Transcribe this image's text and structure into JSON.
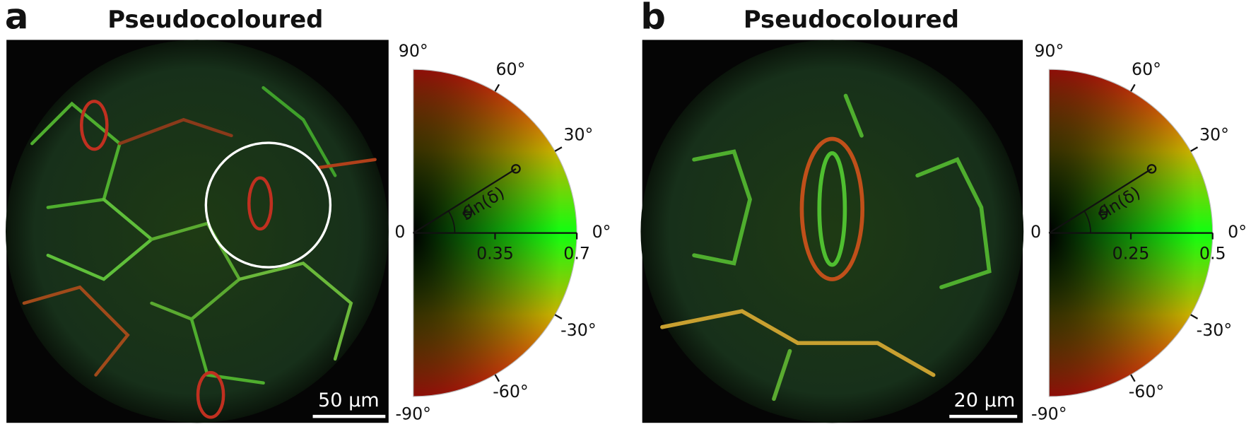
{
  "panels": [
    {
      "label": "a",
      "title": "Pseudocoloured",
      "scale_bar": "50 µm",
      "wheel": {
        "angle_labels": [
          "90°",
          "60°",
          "30°",
          "0°",
          "-30°",
          "-60°",
          "-90°"
        ],
        "origin_label": "0",
        "radial_ticks": [
          "0.35",
          "0.7"
        ],
        "radius_label": "sin(δ)",
        "angle_symbol": "θ"
      }
    },
    {
      "label": "b",
      "title": "Pseudocoloured",
      "scale_bar": "20 µm",
      "wheel": {
        "angle_labels": [
          "90°",
          "60°",
          "30°",
          "0°",
          "-30°",
          "-60°",
          "-90°"
        ],
        "origin_label": "0",
        "radial_ticks": [
          "0.25",
          "0.5"
        ],
        "radius_label": "sin(δ)",
        "angle_symbol": "θ"
      }
    }
  ]
}
